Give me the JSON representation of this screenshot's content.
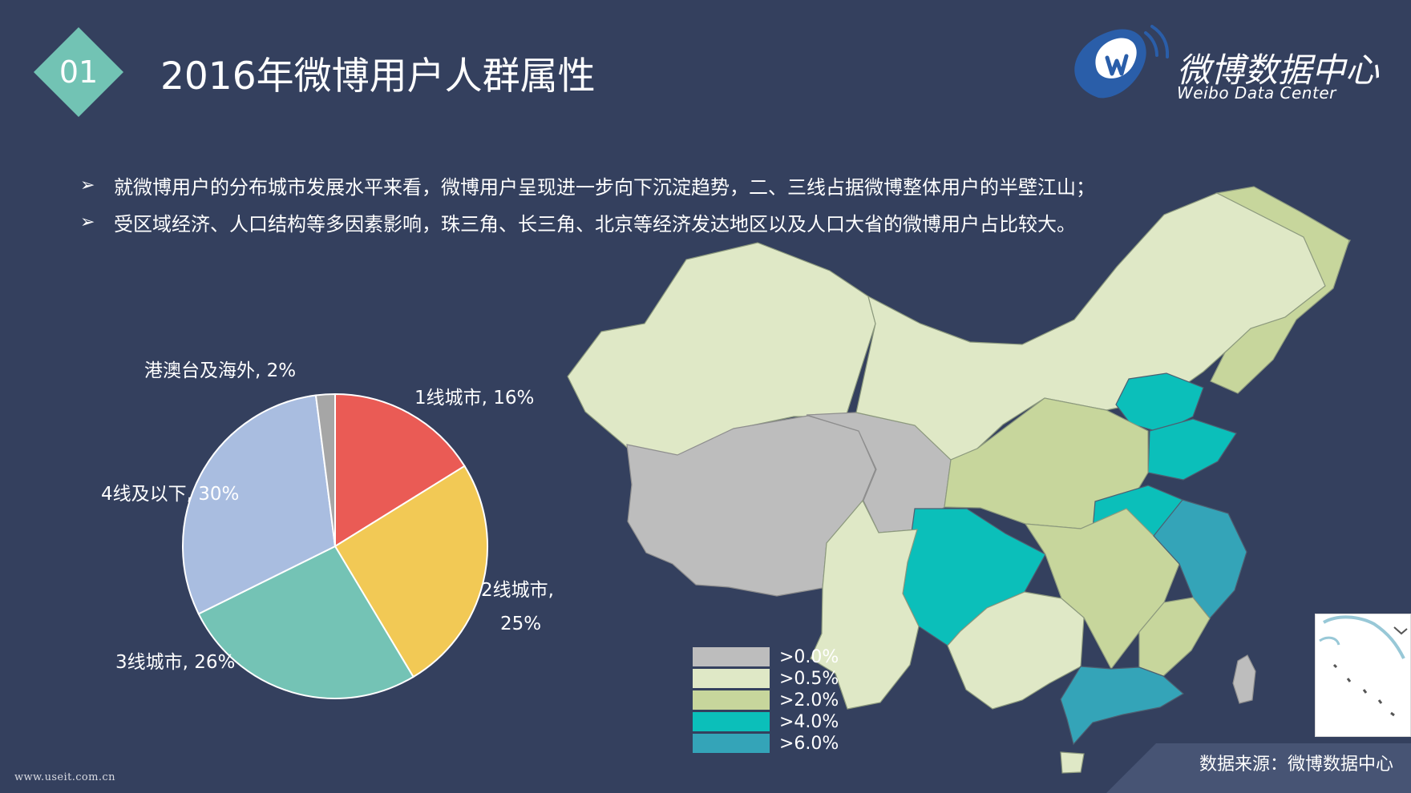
{
  "header": {
    "badge_number": "01",
    "title": "2016年微博用户人群属性"
  },
  "logo": {
    "title": "微博数据中心",
    "subtitle": "Weibo Data Center",
    "logo_icon": "weibo-w-logo-icon"
  },
  "bullets": [
    "就微博用户的分布城市发展水平来看，微博用户呈现进一步向下沉淀趋势，二、三线占据微博整体用户的半壁江山；",
    "受区域经济、人口结构等多因素影响，珠三角、长三角、北京等经济发达地区以及人口大省的微博用户占比较大。"
  ],
  "bullet_icon": "arrowhead-bullet-icon",
  "footer": {
    "source": "数据来源：微博数据中心",
    "watermark": "www.useit.com.cn"
  },
  "colors": {
    "background": "#34405e",
    "badge": "#72c3b4",
    "legend_0": "#bdbdbd",
    "legend_05": "#dfe8c6",
    "legend_2": "#c7d69c",
    "legend_4": "#0bbfba",
    "legend_6": "#34a4b8"
  },
  "chart_data": [
    {
      "type": "pie",
      "series": [
        {
          "values": [
            16,
            25,
            26,
            30,
            2
          ],
          "labels": [
            "1线城市, 16%",
            "2线城市, 25%",
            "3线城市, 26%",
            "4线及以下, 30%",
            "港澳台及海外, 2%"
          ],
          "categories": [
            "1线城市",
            "2线城市",
            "3线城市",
            "4线及以下",
            "港澳台及海外"
          ],
          "colors": [
            "#ea5b55",
            "#f2c955",
            "#74c3b5",
            "#a9bde0",
            "#a6a6a6"
          ]
        }
      ],
      "label_lines": [
        [
          "1线城市, 16%"
        ],
        [
          "2线城市,",
          "25%"
        ],
        [
          "3线城市, 26%"
        ],
        [
          "4线及以下, 30%"
        ],
        [
          "港澳台及海外, 2%"
        ]
      ]
    },
    {
      "type": "heatmap",
      "legend": [
        {
          "label": ">0.0%",
          "color": "#bdbdbd"
        },
        {
          "label": ">0.5%",
          "color": "#dfe8c6"
        },
        {
          "label": ">2.0%",
          "color": "#c7d69c"
        },
        {
          "label": ">4.0%",
          "color": "#0bbfba"
        },
        {
          "label": ">6.0%",
          "color": "#34a4b8"
        }
      ],
      "legend_position": "bottom-center"
    }
  ]
}
